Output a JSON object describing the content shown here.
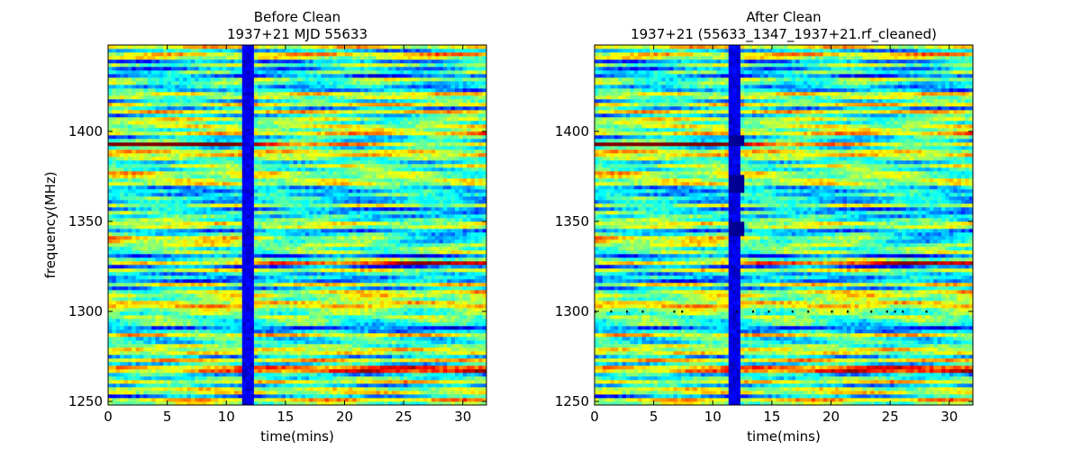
{
  "chart_data": [
    {
      "type": "heatmap",
      "title_line1": "Before Clean",
      "title_line2": "1937+21 MJD 55633",
      "xlabel": "time(mins)",
      "ylabel": "frequency(MHz)",
      "xlim": [
        0,
        32
      ],
      "ylim": [
        1248,
        1448
      ],
      "xticks": [
        0,
        5,
        10,
        15,
        20,
        25,
        30
      ],
      "yticks": [
        1250,
        1300,
        1350,
        1400
      ],
      "colormap": "jet",
      "features": {
        "vertical_dropout_band_mins": [
          11.5,
          12.2
        ],
        "strong_channels_mhz": [
          1393,
          1340,
          1327,
          1268
        ],
        "cleaned_channels_mhz": [],
        "masked_segments": []
      }
    },
    {
      "type": "heatmap",
      "title_line1": "After Clean",
      "title_line2": "1937+21  (55633_1347_1937+21.rf_cleaned)",
      "xlabel": "time(mins)",
      "ylabel": "",
      "xlim": [
        0,
        32
      ],
      "ylim": [
        1248,
        1448
      ],
      "xticks": [
        0,
        5,
        10,
        15,
        20,
        25,
        30
      ],
      "yticks": [
        1250,
        1300,
        1350,
        1400
      ],
      "colormap": "jet",
      "features": {
        "vertical_dropout_band_mins": [
          11.5,
          12.4
        ],
        "strong_channels_mhz": [
          1393,
          1340,
          1327,
          1268
        ],
        "cleaned_channels_mhz": [
          1300
        ],
        "masked_segments": [
          {
            "t0": 11.2,
            "t1": 12.8,
            "f0": 1366,
            "f1": 1375
          },
          {
            "t0": 11.2,
            "t1": 12.8,
            "f0": 1342,
            "f1": 1349
          },
          {
            "t0": 11.2,
            "t1": 12.8,
            "f0": 1393,
            "f1": 1397
          }
        ]
      }
    }
  ]
}
